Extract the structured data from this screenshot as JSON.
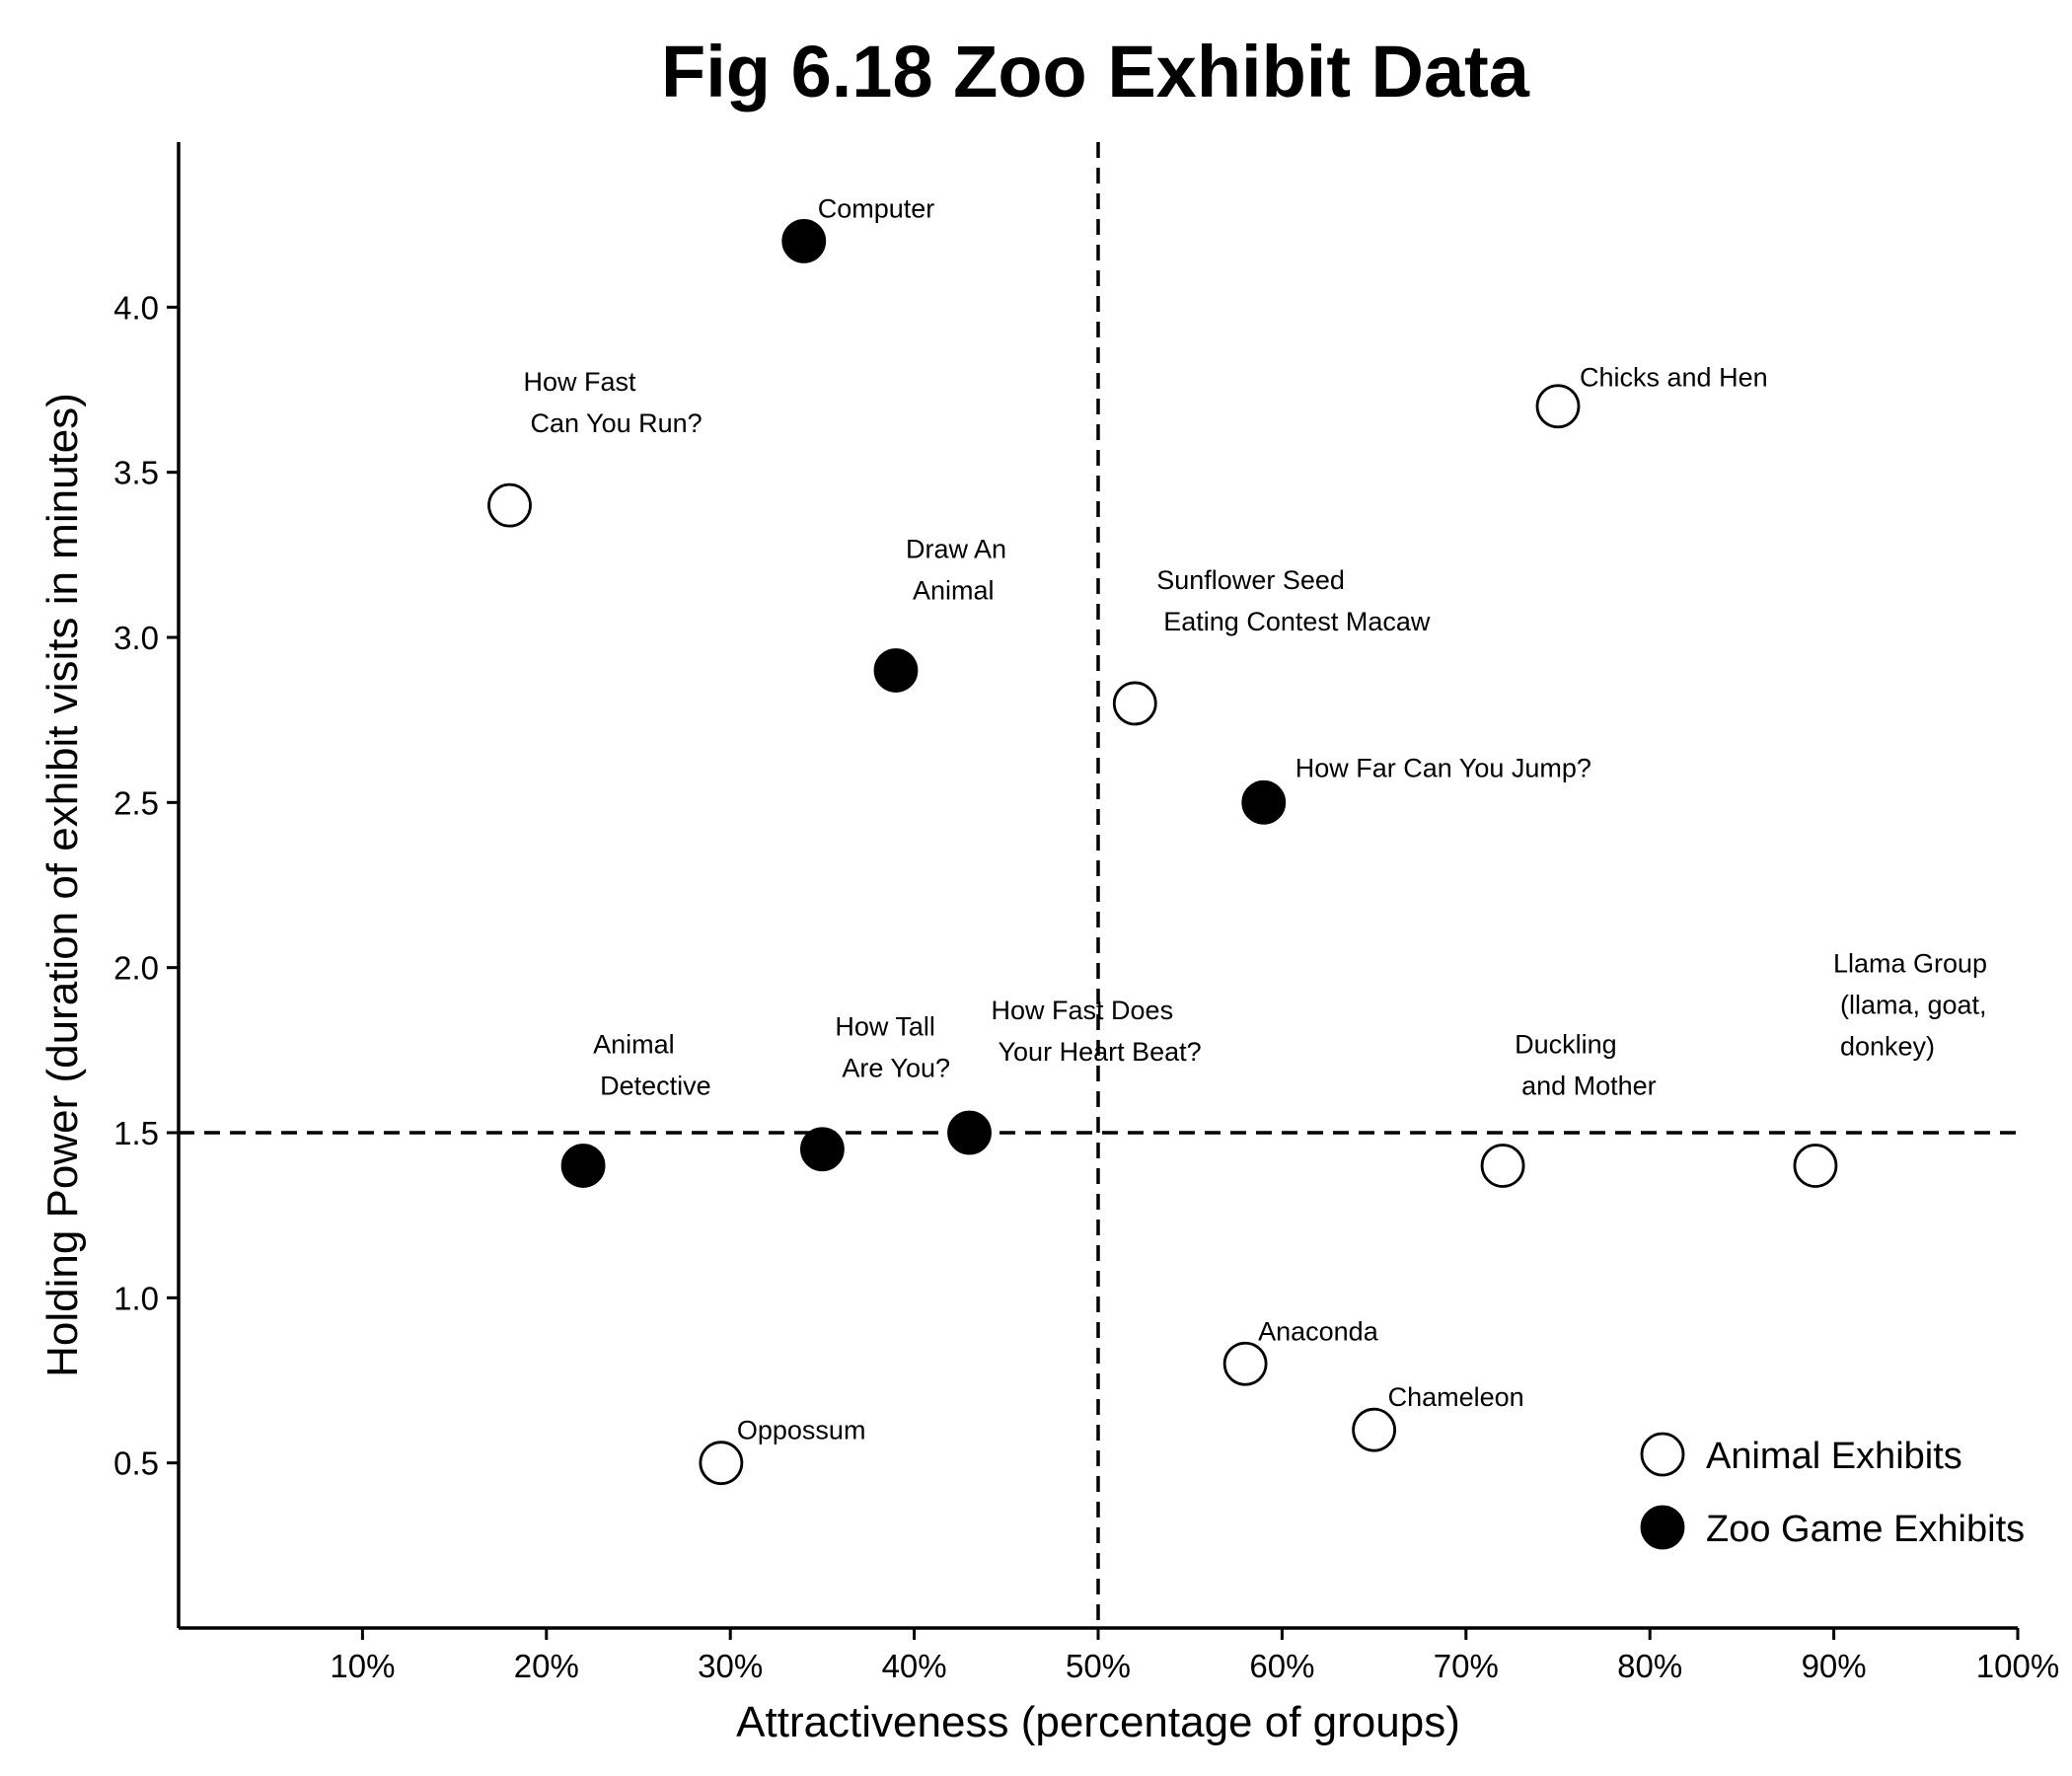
{
  "chart_data": {
    "type": "scatter",
    "title": "Fig 6.18 Zoo Exhibit Data",
    "xlabel": "Attractiveness (percentage of groups)",
    "ylabel": "Holding Power (duration of exhibit visits in minutes)",
    "xlim": [
      0,
      100
    ],
    "ylim": [
      0,
      4.5
    ],
    "x_ticks": [
      {
        "value": 10,
        "label": "10%"
      },
      {
        "value": 20,
        "label": "20%"
      },
      {
        "value": 30,
        "label": "30%"
      },
      {
        "value": 40,
        "label": "40%"
      },
      {
        "value": 50,
        "label": "50%"
      },
      {
        "value": 60,
        "label": "60%"
      },
      {
        "value": 70,
        "label": "70%"
      },
      {
        "value": 80,
        "label": "80%"
      },
      {
        "value": 90,
        "label": "90%"
      },
      {
        "value": 100,
        "label": "100%"
      }
    ],
    "y_ticks": [
      {
        "value": 0.5,
        "label": "0.5"
      },
      {
        "value": 1.0,
        "label": "1.0"
      },
      {
        "value": 1.5,
        "label": "1.5"
      },
      {
        "value": 2.0,
        "label": "2.0"
      },
      {
        "value": 2.5,
        "label": "2.5"
      },
      {
        "value": 3.0,
        "label": "3.0"
      },
      {
        "value": 3.5,
        "label": "3.5"
      },
      {
        "value": 4.0,
        "label": "4.0"
      }
    ],
    "reference_lines": {
      "x": 50,
      "y": 1.5,
      "style": "dashed"
    },
    "grid": false,
    "legend_position": "bottom-right",
    "series": [
      {
        "name": "Animal Exhibits",
        "marker": "open-circle",
        "points": [
          {
            "x": 18,
            "y": 3.4,
            "label": [
              "How Fast",
              "Can You Run?"
            ]
          },
          {
            "x": 75,
            "y": 3.7,
            "label": [
              "Chicks and Hen"
            ]
          },
          {
            "x": 52,
            "y": 2.8,
            "label": [
              "Sunflower Seed",
              "Eating Contest Macaw"
            ]
          },
          {
            "x": 72,
            "y": 1.4,
            "label": [
              "Duckling",
              "and Mother"
            ]
          },
          {
            "x": 89,
            "y": 1.4,
            "label": [
              "Llama Group",
              "(llama, goat,",
              "donkey)"
            ]
          },
          {
            "x": 58,
            "y": 0.8,
            "label": [
              "Anaconda"
            ]
          },
          {
            "x": 65,
            "y": 0.6,
            "label": [
              "Chameleon"
            ]
          },
          {
            "x": 29.5,
            "y": 0.5,
            "label": [
              "Oppossum"
            ]
          }
        ]
      },
      {
        "name": "Zoo Game Exhibits",
        "marker": "filled-circle",
        "points": [
          {
            "x": 34,
            "y": 4.2,
            "label": [
              "Computer"
            ]
          },
          {
            "x": 39,
            "y": 2.9,
            "label": [
              "Draw An",
              "Animal"
            ]
          },
          {
            "x": 59,
            "y": 2.5,
            "label": [
              "How Far Can You Jump?"
            ]
          },
          {
            "x": 22,
            "y": 1.4,
            "label": [
              "Animal",
              "Detective"
            ]
          },
          {
            "x": 35,
            "y": 1.45,
            "label": [
              "How Tall",
              "Are You?"
            ]
          },
          {
            "x": 43,
            "y": 1.5,
            "label": [
              "How Fast Does",
              "Your Heart Beat?"
            ]
          }
        ]
      }
    ],
    "colors": {
      "animal_fill": "#ffffff",
      "game_fill": "#000000",
      "stroke": "#000000"
    }
  }
}
